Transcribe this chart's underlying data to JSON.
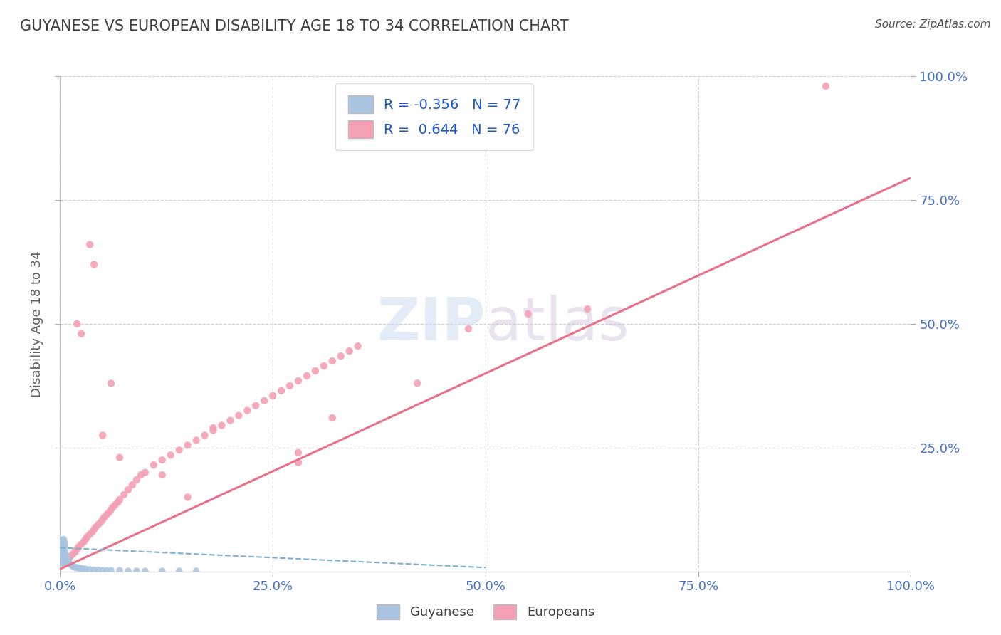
{
  "title": "GUYANESE VS EUROPEAN DISABILITY AGE 18 TO 34 CORRELATION CHART",
  "source_text": "Source: ZipAtlas.com",
  "ylabel": "Disability Age 18 to 34",
  "xlim": [
    0,
    1.0
  ],
  "ylim": [
    0,
    1.0
  ],
  "xticks": [
    0.0,
    0.25,
    0.5,
    0.75,
    1.0
  ],
  "yticks": [
    0.25,
    0.5,
    0.75,
    1.0
  ],
  "xticklabels": [
    "0.0%",
    "25.0%",
    "50.0%",
    "75.0%",
    "100.0%"
  ],
  "yticklabels": [
    "25.0%",
    "50.0%",
    "75.0%",
    "100.0%"
  ],
  "legend_R1": "-0.356",
  "legend_N1": "77",
  "legend_R2": "0.644",
  "legend_N2": "76",
  "color_guyanese": "#a8c4e0",
  "color_europeans": "#f4a0b4",
  "color_line_guyanese": "#7ab0d4",
  "color_line_europeans": "#e8708a",
  "color_ticks_right": "#4472c4",
  "color_ticks_bottom": "#4472c4",
  "color_title": "#404040",
  "background_color": "#ffffff",
  "europeans_x": [
    0.005,
    0.008,
    0.01,
    0.012,
    0.015,
    0.018,
    0.02,
    0.022,
    0.025,
    0.028,
    0.03,
    0.032,
    0.035,
    0.038,
    0.04,
    0.042,
    0.045,
    0.048,
    0.05,
    0.052,
    0.055,
    0.058,
    0.06,
    0.062,
    0.065,
    0.068,
    0.07,
    0.075,
    0.08,
    0.085,
    0.09,
    0.095,
    0.1,
    0.11,
    0.12,
    0.13,
    0.14,
    0.15,
    0.16,
    0.17,
    0.18,
    0.19,
    0.2,
    0.21,
    0.22,
    0.23,
    0.24,
    0.25,
    0.26,
    0.27,
    0.28,
    0.29,
    0.3,
    0.31,
    0.32,
    0.33,
    0.34,
    0.35,
    0.28,
    0.15,
    0.06,
    0.04,
    0.035,
    0.025,
    0.02,
    0.32,
    0.48,
    0.55,
    0.62,
    0.28,
    0.18,
    0.12,
    0.07,
    0.05,
    0.9,
    0.42
  ],
  "europeans_y": [
    0.018,
    0.022,
    0.025,
    0.03,
    0.035,
    0.04,
    0.045,
    0.05,
    0.055,
    0.06,
    0.065,
    0.07,
    0.075,
    0.08,
    0.085,
    0.09,
    0.095,
    0.1,
    0.105,
    0.11,
    0.115,
    0.12,
    0.125,
    0.13,
    0.135,
    0.14,
    0.145,
    0.155,
    0.165,
    0.175,
    0.185,
    0.195,
    0.2,
    0.215,
    0.225,
    0.235,
    0.245,
    0.255,
    0.265,
    0.275,
    0.285,
    0.295,
    0.305,
    0.315,
    0.325,
    0.335,
    0.345,
    0.355,
    0.365,
    0.375,
    0.385,
    0.395,
    0.405,
    0.415,
    0.425,
    0.435,
    0.445,
    0.455,
    0.24,
    0.15,
    0.38,
    0.62,
    0.66,
    0.48,
    0.5,
    0.31,
    0.49,
    0.52,
    0.53,
    0.22,
    0.29,
    0.195,
    0.23,
    0.275,
    0.98,
    0.38
  ],
  "guyanese_x": [
    0.0005,
    0.001,
    0.0015,
    0.002,
    0.0025,
    0.003,
    0.0035,
    0.004,
    0.0045,
    0.005,
    0.0005,
    0.001,
    0.0015,
    0.002,
    0.0025,
    0.003,
    0.0035,
    0.004,
    0.0045,
    0.005,
    0.0005,
    0.001,
    0.0015,
    0.002,
    0.0025,
    0.003,
    0.0035,
    0.004,
    0.0045,
    0.005,
    0.0005,
    0.001,
    0.0015,
    0.002,
    0.0025,
    0.003,
    0.0035,
    0.004,
    0.0045,
    0.005,
    0.0005,
    0.001,
    0.0015,
    0.002,
    0.0025,
    0.003,
    0.0035,
    0.004,
    0.0045,
    0.005,
    0.006,
    0.007,
    0.008,
    0.009,
    0.01,
    0.012,
    0.014,
    0.016,
    0.018,
    0.02,
    0.022,
    0.025,
    0.028,
    0.03,
    0.035,
    0.04,
    0.045,
    0.05,
    0.055,
    0.06,
    0.07,
    0.08,
    0.09,
    0.1,
    0.12,
    0.14,
    0.16
  ],
  "guyanese_y": [
    0.038,
    0.042,
    0.035,
    0.05,
    0.028,
    0.045,
    0.032,
    0.055,
    0.025,
    0.06,
    0.048,
    0.03,
    0.058,
    0.022,
    0.04,
    0.052,
    0.018,
    0.065,
    0.015,
    0.045,
    0.035,
    0.062,
    0.02,
    0.042,
    0.056,
    0.028,
    0.038,
    0.048,
    0.032,
    0.055,
    0.025,
    0.058,
    0.018,
    0.045,
    0.038,
    0.05,
    0.03,
    0.042,
    0.022,
    0.052,
    0.06,
    0.035,
    0.028,
    0.048,
    0.04,
    0.055,
    0.032,
    0.038,
    0.045,
    0.025,
    0.038,
    0.032,
    0.028,
    0.022,
    0.018,
    0.015,
    0.012,
    0.01,
    0.008,
    0.008,
    0.007,
    0.006,
    0.005,
    0.005,
    0.004,
    0.003,
    0.003,
    0.002,
    0.002,
    0.002,
    0.002,
    0.001,
    0.001,
    0.001,
    0.001,
    0.001,
    0.001
  ],
  "europeans_trend_x": [
    0.0,
    1.0
  ],
  "europeans_trend_y": [
    0.005,
    0.795
  ],
  "guyanese_trend_x": [
    0.0,
    0.5
  ],
  "guyanese_trend_y": [
    0.048,
    0.008
  ]
}
